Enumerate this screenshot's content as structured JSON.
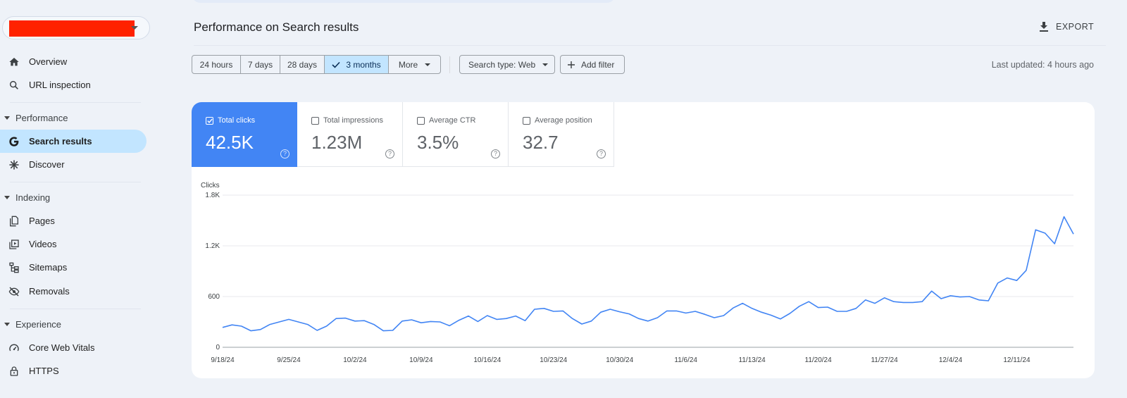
{
  "sidebar": {
    "items": [
      {
        "label": "Overview",
        "icon": "home-icon"
      },
      {
        "label": "URL inspection",
        "icon": "search-icon"
      },
      {
        "section": "Performance"
      },
      {
        "label": "Search results",
        "icon": "google-g-icon",
        "active": true
      },
      {
        "label": "Discover",
        "icon": "asterisk-icon"
      },
      {
        "section": "Indexing"
      },
      {
        "label": "Pages",
        "icon": "pages-icon"
      },
      {
        "label": "Videos",
        "icon": "video-icon"
      },
      {
        "label": "Sitemaps",
        "icon": "sitemap-icon"
      },
      {
        "label": "Removals",
        "icon": "eye-off-icon"
      },
      {
        "section": "Experience"
      },
      {
        "label": "Core Web Vitals",
        "icon": "gauge-icon"
      },
      {
        "label": "HTTPS",
        "icon": "lock-icon"
      }
    ]
  },
  "header": {
    "title": "Performance on Search results",
    "export_label": "EXPORT"
  },
  "filters": {
    "ranges": [
      "24 hours",
      "7 days",
      "28 days",
      "3 months",
      "More"
    ],
    "selected_range": "3 months",
    "search_type": "Search type: Web",
    "add_filter": "Add filter",
    "last_updated": "Last updated: 4 hours ago"
  },
  "metrics": [
    {
      "label": "Total clicks",
      "value": "42.5K",
      "checked": true
    },
    {
      "label": "Total impressions",
      "value": "1.23M",
      "checked": false
    },
    {
      "label": "Average CTR",
      "value": "3.5%",
      "checked": false
    },
    {
      "label": "Average position",
      "value": "32.7",
      "checked": false
    }
  ],
  "colors": {
    "accent": "#4285f4",
    "selected_bg": "#c2e5ff",
    "redaction": "#ff2200"
  },
  "chart_data": {
    "type": "line",
    "ylabel": "Clicks",
    "ylim": [
      0,
      1800
    ],
    "yticks": [
      0,
      600,
      1200,
      1800
    ],
    "ytick_labels": [
      "0",
      "600",
      "1.2K",
      "1.8K"
    ],
    "grid": true,
    "xtick_labels": [
      "9/18/24",
      "9/25/24",
      "10/2/24",
      "10/9/24",
      "10/16/24",
      "10/23/24",
      "10/30/24",
      "11/6/24",
      "11/13/24",
      "11/20/24",
      "11/27/24",
      "12/4/24",
      "12/11/24"
    ],
    "start_date": "9/18/24",
    "series": [
      {
        "color": "#4285f4",
        "values": [
          235,
          265,
          250,
          195,
          210,
          270,
          300,
          330,
          300,
          270,
          200,
          250,
          340,
          345,
          310,
          315,
          270,
          195,
          200,
          310,
          325,
          290,
          305,
          300,
          255,
          320,
          370,
          305,
          375,
          330,
          340,
          370,
          315,
          450,
          460,
          425,
          430,
          340,
          275,
          310,
          415,
          450,
          420,
          395,
          340,
          310,
          350,
          430,
          430,
          405,
          425,
          390,
          350,
          375,
          465,
          520,
          460,
          415,
          380,
          335,
          400,
          485,
          540,
          470,
          475,
          425,
          425,
          460,
          560,
          520,
          585,
          540,
          530,
          530,
          540,
          665,
          575,
          610,
          595,
          600,
          560,
          550,
          760,
          820,
          790,
          910,
          1390,
          1350,
          1225,
          1545,
          1340
        ]
      }
    ]
  }
}
